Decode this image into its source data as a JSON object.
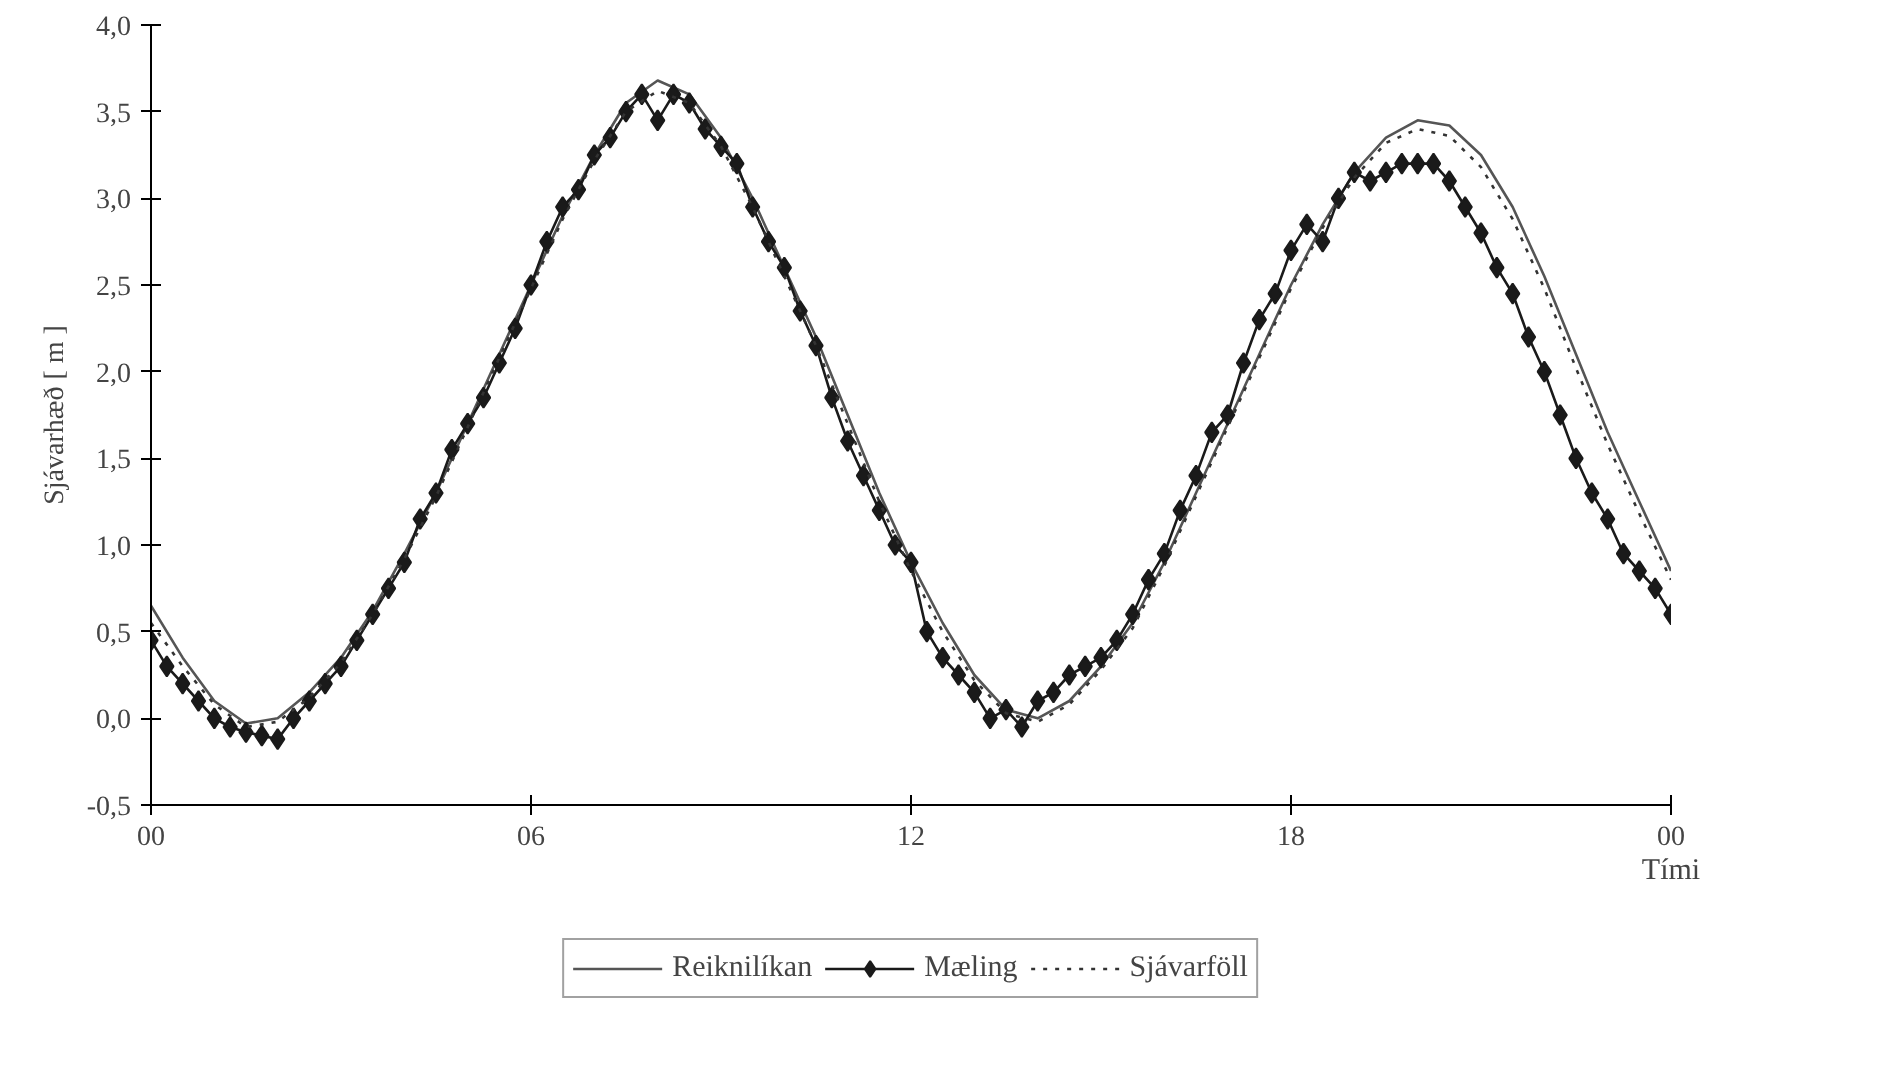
{
  "chart_data": {
    "type": "line",
    "xlabel": "Tími",
    "ylabel": "Sjávarhæð [ m ]",
    "xlim": [
      0,
      24
    ],
    "ylim": [
      -0.5,
      4.0
    ],
    "xticks": [
      {
        "value": 0,
        "label": "00"
      },
      {
        "value": 6,
        "label": "06"
      },
      {
        "value": 12,
        "label": "12"
      },
      {
        "value": 18,
        "label": "18"
      },
      {
        "value": 24,
        "label": "00"
      }
    ],
    "yticks": [
      {
        "value": -0.5,
        "label": "-0,5"
      },
      {
        "value": 0,
        "label": "0,0"
      },
      {
        "value": 0.5,
        "label": "0,5"
      },
      {
        "value": 1,
        "label": "1,0"
      },
      {
        "value": 1.5,
        "label": "1,5"
      },
      {
        "value": 2,
        "label": "2,0"
      },
      {
        "value": 2.5,
        "label": "2,5"
      },
      {
        "value": 3,
        "label": "3,0"
      },
      {
        "value": 3.5,
        "label": "3,5"
      },
      {
        "value": 4,
        "label": "4,0"
      }
    ],
    "grid": false,
    "legend": "bottom",
    "series": [
      {
        "name": "Reiknilíkan",
        "color": "#555555",
        "marker": "none",
        "line_style": "solid",
        "x": [
          0,
          0.5,
          1,
          1.5,
          2,
          2.5,
          3,
          3.5,
          4,
          4.5,
          5,
          5.5,
          6,
          6.5,
          7,
          7.5,
          8,
          8.5,
          9,
          9.5,
          10,
          10.5,
          11,
          11.5,
          12,
          12.5,
          13,
          13.5,
          14,
          14.5,
          15,
          15.5,
          16,
          16.5,
          17,
          17.5,
          18,
          18.5,
          19,
          19.5,
          20,
          20.5,
          21,
          21.5,
          22,
          22.5,
          23,
          23.5,
          24
        ],
        "values": [
          0.65,
          0.35,
          0.1,
          -0.03,
          0.0,
          0.15,
          0.35,
          0.62,
          0.95,
          1.3,
          1.7,
          2.1,
          2.5,
          2.9,
          3.25,
          3.55,
          3.68,
          3.6,
          3.35,
          3.0,
          2.6,
          2.2,
          1.75,
          1.3,
          0.9,
          0.55,
          0.25,
          0.05,
          0.0,
          0.1,
          0.3,
          0.55,
          0.9,
          1.3,
          1.7,
          2.1,
          2.5,
          2.85,
          3.15,
          3.35,
          3.45,
          3.42,
          3.25,
          2.95,
          2.55,
          2.1,
          1.65,
          1.25,
          0.85
        ]
      },
      {
        "name": "Mæling",
        "color": "#1a1a1a",
        "marker": "diamond",
        "line_style": "solid",
        "x": [
          0,
          0.25,
          0.5,
          0.75,
          1,
          1.25,
          1.5,
          1.75,
          2,
          2.25,
          2.5,
          2.75,
          3,
          3.25,
          3.5,
          3.75,
          4,
          4.25,
          4.5,
          4.75,
          5,
          5.25,
          5.5,
          5.75,
          6,
          6.25,
          6.5,
          6.75,
          7,
          7.25,
          7.5,
          7.75,
          8,
          8.25,
          8.5,
          8.75,
          9,
          9.25,
          9.5,
          9.75,
          10,
          10.25,
          10.5,
          10.75,
          11,
          11.25,
          11.5,
          11.75,
          12,
          12.25,
          12.5,
          12.75,
          13,
          13.25,
          13.5,
          13.75,
          14,
          14.25,
          14.5,
          14.75,
          15,
          15.25,
          15.5,
          15.75,
          16,
          16.25,
          16.5,
          16.75,
          17,
          17.25,
          17.5,
          17.75,
          18,
          18.25,
          18.5,
          18.75,
          19,
          19.25,
          19.5,
          19.75,
          20,
          20.25,
          20.5,
          20.75,
          21,
          21.25,
          21.5,
          21.75,
          22,
          22.25,
          22.5,
          22.75,
          23,
          23.25,
          23.5,
          23.75,
          24
        ],
        "values": [
          0.45,
          0.3,
          0.2,
          0.1,
          0.0,
          -0.05,
          -0.08,
          -0.1,
          -0.12,
          0.0,
          0.1,
          0.2,
          0.3,
          0.45,
          0.6,
          0.75,
          0.9,
          1.15,
          1.3,
          1.55,
          1.7,
          1.85,
          2.05,
          2.25,
          2.5,
          2.75,
          2.95,
          3.05,
          3.25,
          3.35,
          3.5,
          3.6,
          3.45,
          3.6,
          3.55,
          3.4,
          3.3,
          3.2,
          2.95,
          2.75,
          2.6,
          2.35,
          2.15,
          1.85,
          1.6,
          1.4,
          1.2,
          1.0,
          0.9,
          0.5,
          0.35,
          0.25,
          0.15,
          0.0,
          0.05,
          -0.05,
          0.1,
          0.15,
          0.25,
          0.3,
          0.35,
          0.45,
          0.6,
          0.8,
          0.95,
          1.2,
          1.4,
          1.65,
          1.75,
          2.05,
          2.3,
          2.45,
          2.7,
          2.85,
          2.75,
          3.0,
          3.15,
          3.1,
          3.15,
          3.2,
          3.2,
          3.2,
          3.1,
          2.95,
          2.8,
          2.6,
          2.45,
          2.2,
          2.0,
          1.75,
          1.5,
          1.3,
          1.15,
          0.95,
          0.85,
          0.75,
          0.6
        ]
      },
      {
        "name": "Sjávarföll",
        "color": "#333333",
        "marker": "none",
        "line_style": "dotted",
        "x": [
          0,
          0.5,
          1,
          1.5,
          2,
          2.5,
          3,
          3.5,
          4,
          4.5,
          5,
          5.5,
          6,
          6.5,
          7,
          7.5,
          8,
          8.5,
          9,
          9.5,
          10,
          10.5,
          11,
          11.5,
          12,
          12.5,
          13,
          13.5,
          14,
          14.5,
          15,
          15.5,
          16,
          16.5,
          17,
          17.5,
          18,
          18.5,
          19,
          19.5,
          20,
          20.5,
          21,
          21.5,
          22,
          22.5,
          23,
          23.5,
          24
        ],
        "values": [
          0.55,
          0.3,
          0.08,
          -0.05,
          -0.02,
          0.12,
          0.32,
          0.6,
          0.92,
          1.28,
          1.68,
          2.08,
          2.48,
          2.88,
          3.22,
          3.5,
          3.62,
          3.55,
          3.3,
          2.95,
          2.55,
          2.15,
          1.7,
          1.25,
          0.85,
          0.5,
          0.22,
          0.03,
          -0.02,
          0.08,
          0.28,
          0.52,
          0.88,
          1.28,
          1.68,
          2.08,
          2.48,
          2.83,
          3.12,
          3.32,
          3.4,
          3.36,
          3.18,
          2.88,
          2.48,
          2.02,
          1.58,
          1.18,
          0.8
        ]
      }
    ]
  }
}
